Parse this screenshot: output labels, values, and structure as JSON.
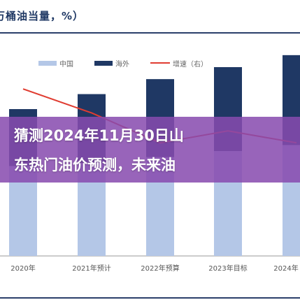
{
  "header": {
    "title": "万桶油当量，%）"
  },
  "overlay": {
    "line1": "猜测2024年11月30日山",
    "line2": "东热门油价预测，未来油"
  },
  "colors": {
    "china": "#b4c7e7",
    "overseas": "#1f3864",
    "growth": "#e03c31",
    "overlay": "#874baf"
  },
  "chart_data": {
    "type": "bar",
    "categories": [
      "2020年",
      "2021年预计",
      "2022年预算",
      "2023年目标",
      "2024年"
    ],
    "series": [
      {
        "name": "中国",
        "values": [
          300,
          310,
          330,
          350,
          370
        ]
      },
      {
        "name": "海外",
        "values": [
          190,
          230,
          260,
          280,
          300
        ]
      },
      {
        "name": "增速（右）",
        "values": [
          12,
          8,
          3,
          5,
          3
        ],
        "axis": "right"
      }
    ],
    "legend": [
      "中国",
      "海外",
      "增速（右）"
    ],
    "legend_position": "top",
    "stacked": true
  }
}
